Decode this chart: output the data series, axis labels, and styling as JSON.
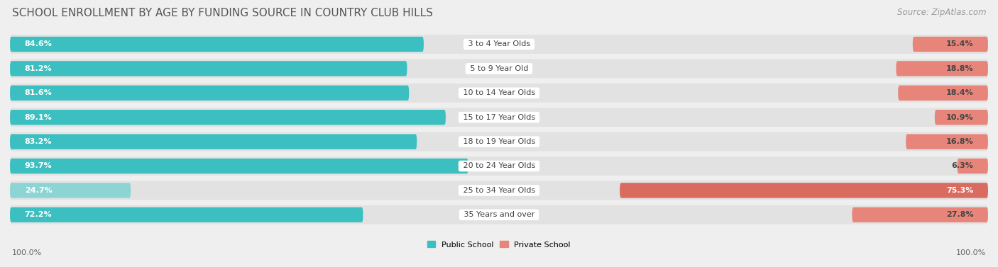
{
  "title": "SCHOOL ENROLLMENT BY AGE BY FUNDING SOURCE IN COUNTRY CLUB HILLS",
  "source": "Source: ZipAtlas.com",
  "categories": [
    "3 to 4 Year Olds",
    "5 to 9 Year Old",
    "10 to 14 Year Olds",
    "15 to 17 Year Olds",
    "18 to 19 Year Olds",
    "20 to 24 Year Olds",
    "25 to 34 Year Olds",
    "35 Years and over"
  ],
  "public_values": [
    84.6,
    81.2,
    81.6,
    89.1,
    83.2,
    93.7,
    24.7,
    72.2
  ],
  "private_values": [
    15.4,
    18.8,
    18.4,
    10.9,
    16.8,
    6.3,
    75.3,
    27.8
  ],
  "public_color": "#3BBFC0",
  "private_color": "#E8857A",
  "private_color_dark": "#D96B5F",
  "public_color_light": "#8DD4D4",
  "bg_color": "#EFEFEF",
  "row_pill_color": "#E2E2E2",
  "legend_public": "Public School",
  "legend_private": "Private School",
  "title_fontsize": 11,
  "source_fontsize": 8.5,
  "value_fontsize": 8,
  "cat_fontsize": 8,
  "axis_label_fontsize": 8,
  "bottom_label": "100.0%"
}
